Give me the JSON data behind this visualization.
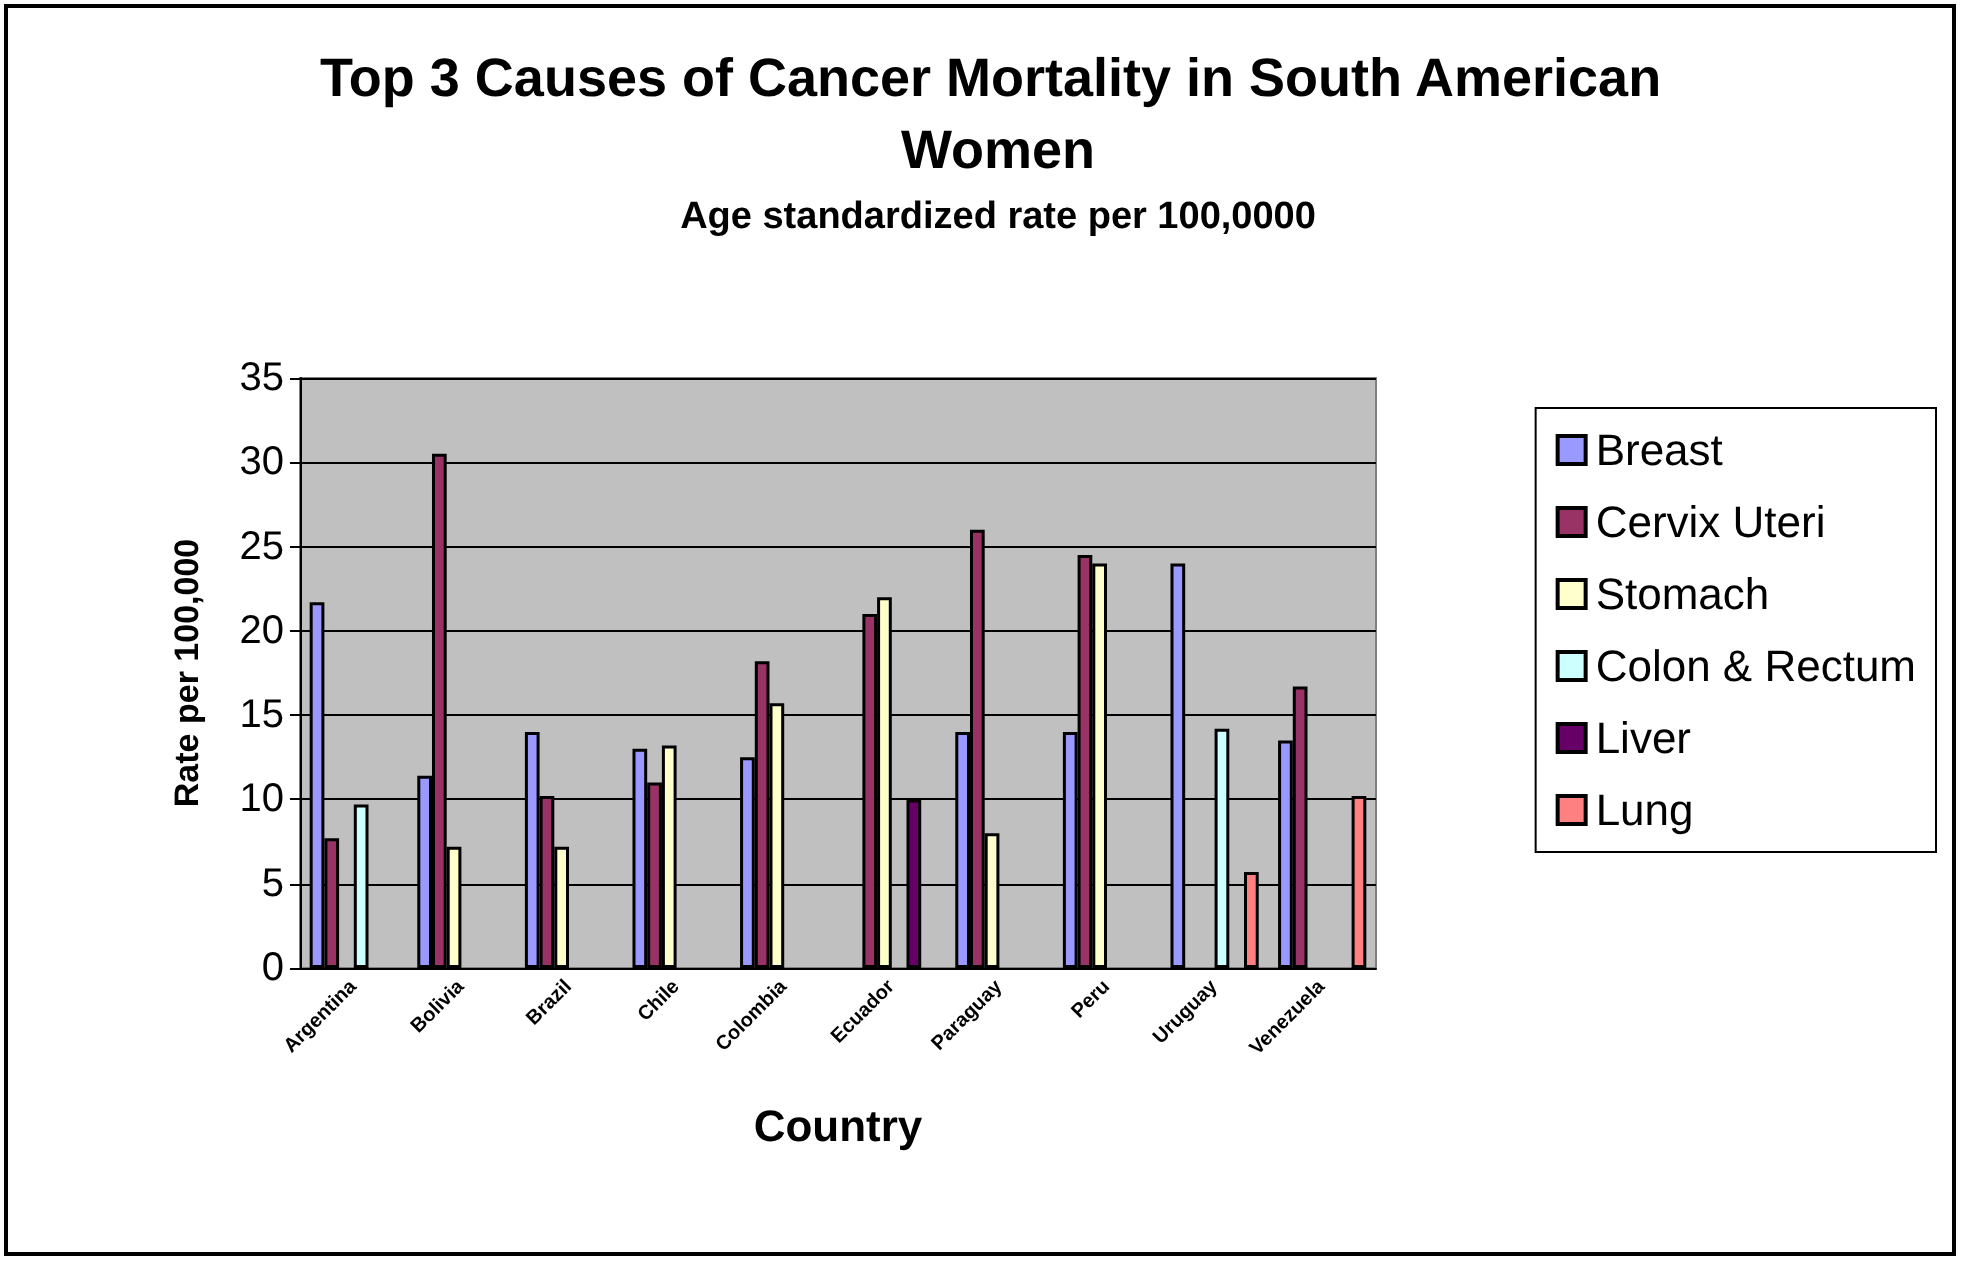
{
  "chart_data": {
    "type": "bar",
    "title": "Top 3 Causes of Cancer Mortality in South American Women",
    "subtitle": "Age standardized rate per 100,0000",
    "xlabel": "Country",
    "ylabel": "Rate per 100,000",
    "categories": [
      "Argentina",
      "Bolivia",
      "Brazil",
      "Chile",
      "Colombia",
      "Ecuador",
      "Paraguay",
      "Peru",
      "Uruguay",
      "Venezuela"
    ],
    "series": [
      {
        "name": "Breast",
        "color": "#9999ff",
        "values": [
          21.7,
          11.4,
          14,
          13,
          12.5,
          null,
          14,
          14,
          24,
          13.5
        ]
      },
      {
        "name": "Cervix Uteri",
        "color": "#993366",
        "values": [
          7.7,
          30.5,
          10.2,
          11,
          18.2,
          21,
          26,
          24.5,
          null,
          16.7
        ]
      },
      {
        "name": "Stomach",
        "color": "#ffffcc",
        "values": [
          null,
          7.2,
          7.2,
          13.2,
          15.7,
          22,
          8,
          24,
          null,
          null
        ]
      },
      {
        "name": "Colon & Rectum",
        "color": "#ccffff",
        "values": [
          9.7,
          null,
          null,
          null,
          null,
          null,
          null,
          null,
          14.2,
          null
        ]
      },
      {
        "name": "Liver",
        "color": "#660066",
        "values": [
          null,
          null,
          null,
          null,
          null,
          10,
          null,
          null,
          null,
          null
        ]
      },
      {
        "name": "Lung",
        "color": "#ff8080",
        "values": [
          null,
          null,
          null,
          null,
          null,
          null,
          null,
          null,
          5.7,
          10.2
        ]
      }
    ],
    "ylim": [
      0,
      35
    ],
    "yticks": [
      0,
      5,
      10,
      15,
      20,
      25,
      30,
      35
    ],
    "grid": "y",
    "legend": "right"
  }
}
